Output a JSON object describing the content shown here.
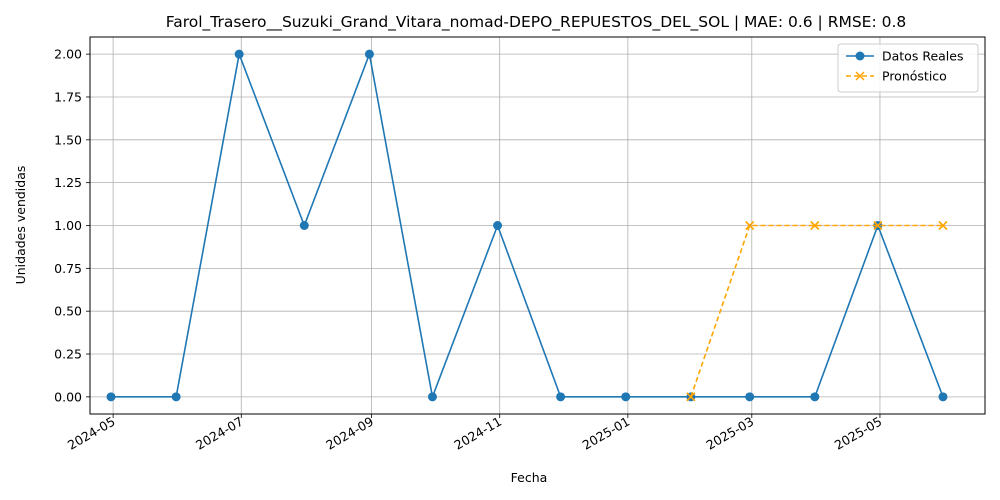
{
  "chart_data": {
    "type": "line",
    "title": "Farol_Trasero__Suzuki_Grand_Vitara_nomad-DEPO_REPUESTOS_DEL_SOL | MAE: 0.6 | RMSE: 0.8",
    "xlabel": "Fecha",
    "ylabel": "Unidades vendidas",
    "ylim": [
      -0.1,
      2.1
    ],
    "xlim": [
      "2024-04-20",
      "2025-06-20"
    ],
    "grid": true,
    "legend_position": "top-right",
    "x_ticks": [
      "2024-05",
      "2024-07",
      "2024-09",
      "2024-11",
      "2025-01",
      "2025-03",
      "2025-05"
    ],
    "y_ticks": [
      "0.00",
      "0.25",
      "0.50",
      "0.75",
      "1.00",
      "1.25",
      "1.50",
      "1.75",
      "2.00"
    ],
    "series": [
      {
        "name": "Datos Reales",
        "color": "#1f77b4",
        "marker": "circle",
        "linestyle": "solid",
        "x": [
          "2024-04-30",
          "2024-05-31",
          "2024-06-30",
          "2024-07-31",
          "2024-08-31",
          "2024-09-30",
          "2024-10-31",
          "2024-11-30",
          "2024-12-31",
          "2025-01-31",
          "2025-02-28",
          "2025-03-31",
          "2025-04-30",
          "2025-05-31"
        ],
        "values": [
          0,
          0,
          2,
          1,
          2,
          0,
          1,
          0,
          0,
          0,
          0,
          0,
          1,
          0
        ]
      },
      {
        "name": "Pronóstico",
        "color": "#ffa500",
        "marker": "x",
        "linestyle": "dashed",
        "x": [
          "2025-01-31",
          "2025-02-28",
          "2025-03-31",
          "2025-04-30",
          "2025-05-31"
        ],
        "values": [
          0,
          1,
          1,
          1,
          1
        ]
      }
    ]
  }
}
